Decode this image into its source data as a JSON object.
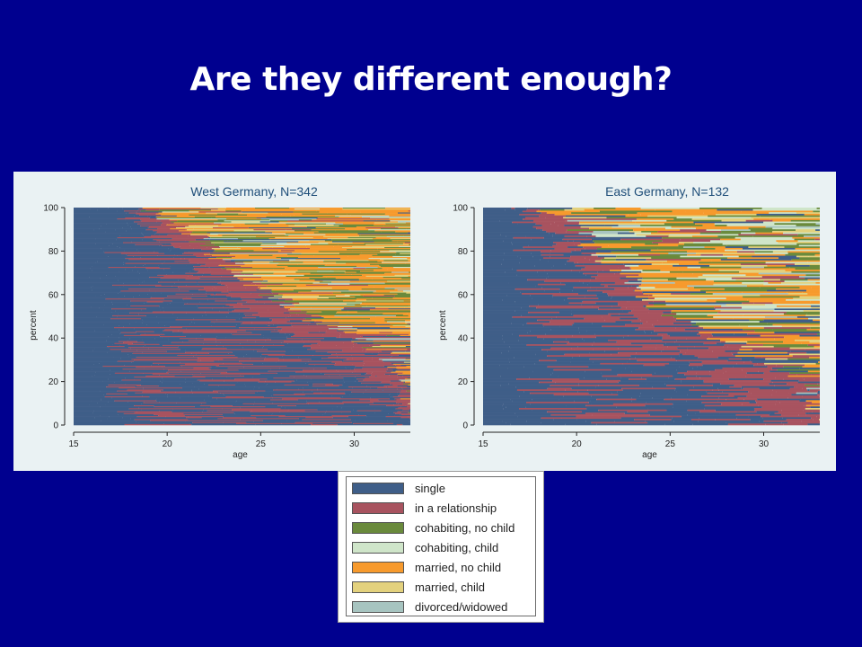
{
  "slide": {
    "title": "Are they different enough?"
  },
  "colors": {
    "background": "#00008f",
    "single": "#3f5e88",
    "in a relationship": "#a8535f",
    "cohabiting, no child": "#6a8a3c",
    "cohabiting, child": "#cfe5c9",
    "married, no child": "#f79a2d",
    "married, child": "#e3d17d",
    "divorced/widowed": "#a7c4c0"
  },
  "chart_data": [
    {
      "type": "sequence index plot (stacked horizontal state sequences)",
      "title": "West Germany, N=342",
      "xlabel": "age",
      "ylabel": "percent",
      "xlim": [
        15,
        33
      ],
      "ylim": [
        0,
        100
      ],
      "xticks": [
        15,
        20,
        25,
        30
      ],
      "yticks": [
        0,
        20,
        40,
        60,
        80,
        100
      ],
      "n": 342,
      "approx_first_exit_from_single_age": [
        [
          100,
          18.0
        ],
        [
          90,
          19.5
        ],
        [
          80,
          20.5
        ],
        [
          70,
          21.8
        ],
        [
          60,
          23.0
        ],
        [
          50,
          24.5
        ],
        [
          40,
          26.5
        ],
        [
          30,
          29.0
        ],
        [
          20,
          31.0
        ],
        [
          10,
          33.0
        ],
        [
          0,
          33.0
        ]
      ],
      "approx_exit_from_relationship_age": [
        [
          100,
          19.0
        ],
        [
          90,
          21.0
        ],
        [
          80,
          22.5
        ],
        [
          70,
          24.0
        ],
        [
          60,
          25.5
        ],
        [
          50,
          27.5
        ],
        [
          40,
          30.0
        ],
        [
          30,
          32.0
        ],
        [
          20,
          33.0
        ],
        [
          10,
          33.0
        ],
        [
          0,
          33.0
        ]
      ]
    },
    {
      "type": "sequence index plot (stacked horizontal state sequences)",
      "title": "East Germany, N=132",
      "xlabel": "age",
      "ylabel": "percent",
      "xlim": [
        15,
        33
      ],
      "ylim": [
        0,
        100
      ],
      "xticks": [
        15,
        20,
        25,
        30
      ],
      "yticks": [
        0,
        20,
        40,
        60,
        80,
        100
      ],
      "n": 132,
      "approx_first_exit_from_single_age": [
        [
          100,
          17.0
        ],
        [
          90,
          18.5
        ],
        [
          80,
          19.5
        ],
        [
          70,
          20.5
        ],
        [
          60,
          21.5
        ],
        [
          50,
          23.0
        ],
        [
          40,
          24.5
        ],
        [
          30,
          26.0
        ],
        [
          20,
          27.5
        ],
        [
          10,
          29.5
        ],
        [
          0,
          31.0
        ]
      ],
      "approx_exit_from_relationship_age": [
        [
          100,
          18.0
        ],
        [
          90,
          20.0
        ],
        [
          80,
          21.0
        ],
        [
          70,
          22.5
        ],
        [
          60,
          23.5
        ],
        [
          50,
          25.0
        ],
        [
          40,
          27.0
        ],
        [
          30,
          29.5
        ],
        [
          20,
          32.0
        ],
        [
          10,
          33.0
        ],
        [
          0,
          33.0
        ]
      ]
    }
  ],
  "legend": {
    "items": [
      {
        "label": "single",
        "color": "#3f5e88"
      },
      {
        "label": "in a relationship",
        "color": "#a8535f"
      },
      {
        "label": "cohabiting, no child",
        "color": "#6a8a3c"
      },
      {
        "label": "cohabiting, child",
        "color": "#cfe5c9"
      },
      {
        "label": "married, no child",
        "color": "#f79a2d"
      },
      {
        "label": "married, child",
        "color": "#e3d17d"
      },
      {
        "label": "divorced/widowed",
        "color": "#a7c4c0"
      }
    ]
  }
}
